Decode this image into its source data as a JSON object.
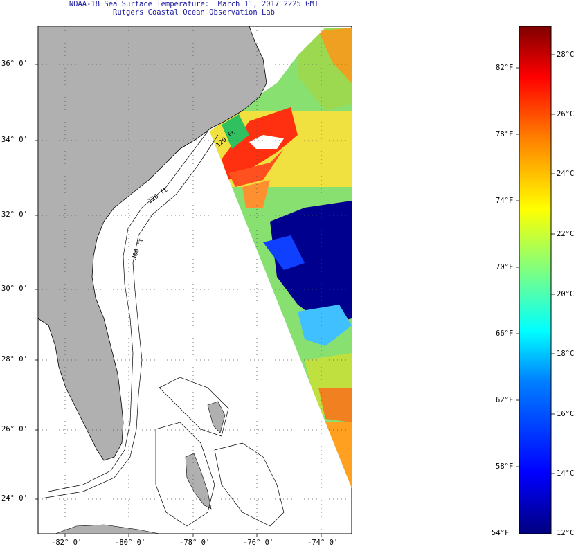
{
  "title": {
    "line1": "NOAA-18 Sea Surface Temperature:  March 11, 2017 2225 GMT",
    "line2": "Rutgers Coastal Ocean Observation Lab"
  },
  "map": {
    "lat_labels": [
      "36° 0'",
      "34° 0'",
      "32° 0'",
      "30° 0'",
      "28° 0'",
      "26° 0'",
      "24° 0'"
    ],
    "lon_labels": [
      "-82° 0'",
      "-80° 0'",
      "-78° 0'",
      "-76° 0'",
      "-74° 0'"
    ],
    "isobath_labels": [
      "120 ft",
      "120 ft",
      "300 ft"
    ]
  },
  "colorbar": {
    "f_labels": [
      "82°F",
      "78°F",
      "74°F",
      "70°F",
      "66°F",
      "62°F",
      "58°F",
      "54°F"
    ],
    "c_labels": [
      "28°C",
      "26°C",
      "24°C",
      "22°C",
      "20°C",
      "18°C",
      "16°C",
      "14°C",
      "12°C"
    ],
    "colors": [
      "#00007f",
      "#0000ff",
      "#007fff",
      "#00ffff",
      "#7fff7f",
      "#ffff00",
      "#ff7f00",
      "#ff0000",
      "#7f0000"
    ]
  },
  "colors": {
    "land": "#b0b0b0",
    "grid": "#555555",
    "title": "#1a1aa0"
  }
}
